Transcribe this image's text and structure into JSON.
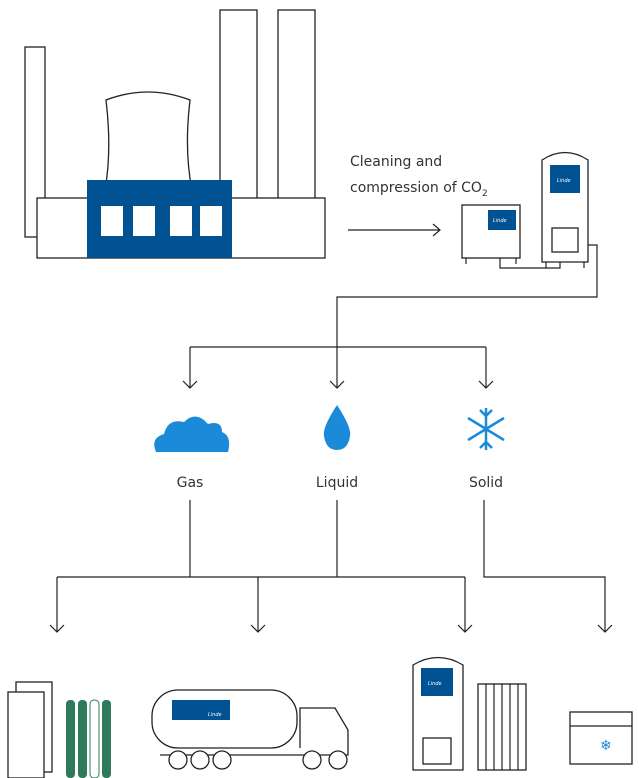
{
  "process": {
    "label_line1": "Cleaning and",
    "label_line2": "compression of CO",
    "label_subscript": "2"
  },
  "states": [
    {
      "label": "Gas"
    },
    {
      "label": "Liquid"
    },
    {
      "label": "Solid"
    }
  ],
  "brand": "Linde"
}
